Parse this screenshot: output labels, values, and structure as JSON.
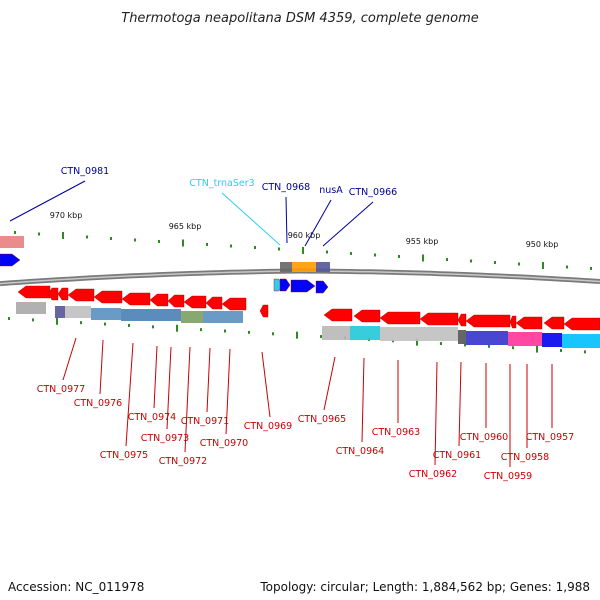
{
  "title": "Thermotoga neapolitana DSM 4359, complete genome",
  "footer": {
    "accession": "Accession: NC_011978",
    "topology": "Topology: circular; Length: 1,884,562 bp; Genes: 1,988"
  },
  "colors": {
    "forward_gene": "#ff0000",
    "reverse_gene": "#0000ff",
    "tick": "#2e8b22",
    "backbone": "#888888",
    "label_top": "#000099",
    "label_trna": "#33ccee",
    "label_bottom": "#cc0000"
  },
  "scale_labels": [
    "970 kbp",
    "965 kbp",
    "960 kbp",
    "955 kbp",
    "950 kbp"
  ],
  "top_labels": [
    "CTN_0981",
    "CTN_trnaSer3",
    "CTN_0968",
    "nusA",
    "CTN_0966"
  ],
  "bottom_labels": [
    "CTN_0977",
    "CTN_0976",
    "CTN_0975",
    "CTN_0974",
    "CTN_0973",
    "CTN_0972",
    "CTN_0971",
    "CTN_0970",
    "CTN_0969",
    "CTN_0965",
    "CTN_0964",
    "CTN_0963",
    "CTN_0962",
    "CTN_0961",
    "CTN_0960",
    "CTN_0959",
    "CTN_0958",
    "CTN_0957"
  ]
}
